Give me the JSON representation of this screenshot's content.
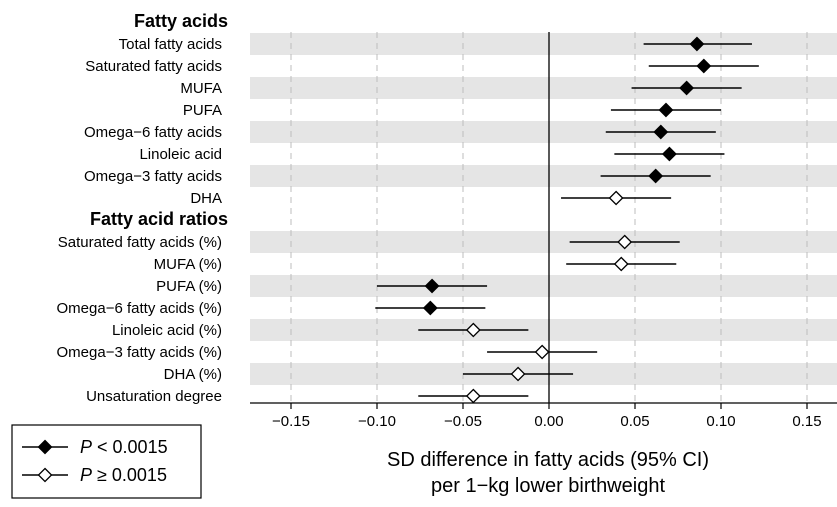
{
  "chart_data": {
    "type": "forest",
    "xlabel_line1": "SD difference in fatty acids (95% CI)",
    "xlabel_line2": "per 1−kg lower birthweight",
    "xlim": [
      -0.175,
      0.165
    ],
    "x_ticks": [
      -0.15,
      -0.1,
      -0.05,
      0.0,
      0.05,
      0.1,
      0.15
    ],
    "x_tick_labels": [
      "−0.15",
      "−0.10",
      "−0.05",
      "0.00",
      "0.05",
      "0.10",
      "0.15"
    ],
    "reference_line": 0,
    "grid": "vertical dashed",
    "groups": [
      {
        "title": "Fatty acids",
        "rows": [
          {
            "label": "Total fatty acids",
            "estimate": 0.086,
            "lower": 0.055,
            "upper": 0.118,
            "significant": true
          },
          {
            "label": "Saturated fatty acids",
            "estimate": 0.09,
            "lower": 0.058,
            "upper": 0.122,
            "significant": true
          },
          {
            "label": "MUFA",
            "estimate": 0.08,
            "lower": 0.048,
            "upper": 0.112,
            "significant": true
          },
          {
            "label": "PUFA",
            "estimate": 0.068,
            "lower": 0.036,
            "upper": 0.1,
            "significant": true
          },
          {
            "label": "Omega−6 fatty acids",
            "estimate": 0.065,
            "lower": 0.033,
            "upper": 0.097,
            "significant": true
          },
          {
            "label": "Linoleic acid",
            "estimate": 0.07,
            "lower": 0.038,
            "upper": 0.102,
            "significant": true
          },
          {
            "label": "Omega−3 fatty acids",
            "estimate": 0.062,
            "lower": 0.03,
            "upper": 0.094,
            "significant": true
          },
          {
            "label": "DHA",
            "estimate": 0.039,
            "lower": 0.007,
            "upper": 0.071,
            "significant": false
          }
        ]
      },
      {
        "title": "Fatty acid ratios",
        "rows": [
          {
            "label": "Saturated fatty acids (%)",
            "estimate": 0.044,
            "lower": 0.012,
            "upper": 0.076,
            "significant": false
          },
          {
            "label": "MUFA (%)",
            "estimate": 0.042,
            "lower": 0.01,
            "upper": 0.074,
            "significant": false
          },
          {
            "label": "PUFA (%)",
            "estimate": -0.068,
            "lower": -0.1,
            "upper": -0.036,
            "significant": true
          },
          {
            "label": "Omega−6 fatty acids (%)",
            "estimate": -0.069,
            "lower": -0.101,
            "upper": -0.037,
            "significant": true
          },
          {
            "label": "Linoleic acid (%)",
            "estimate": -0.044,
            "lower": -0.076,
            "upper": -0.012,
            "significant": false
          },
          {
            "label": "Omega−3 fatty acids (%)",
            "estimate": -0.004,
            "lower": -0.036,
            "upper": 0.028,
            "significant": false
          },
          {
            "label": "DHA (%)",
            "estimate": -0.018,
            "lower": -0.05,
            "upper": 0.014,
            "significant": false
          },
          {
            "label": "Unsaturation degree",
            "estimate": -0.044,
            "lower": -0.076,
            "upper": -0.012,
            "significant": false
          }
        ]
      }
    ],
    "legend": {
      "placement": "bottom-left",
      "entries": [
        {
          "symbol": "filled-diamond",
          "label_prefix": "P",
          "label_suffix": " < 0.0015"
        },
        {
          "symbol": "open-diamond",
          "label_prefix": "P",
          "label_suffix": " ≥ 0.0015"
        }
      ]
    },
    "colors": {
      "band": "#e5e5e5",
      "grid": "#bdbdbd",
      "marker": "#000000",
      "open_marker_fill": "#ffffff"
    }
  }
}
